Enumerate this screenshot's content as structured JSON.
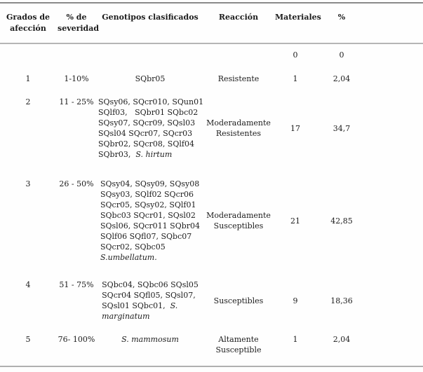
{
  "colors": {
    "background": "#fefefe",
    "text": "#1c1c1c",
    "rule_top": "#8a8a8a",
    "rule_header": "#b5b5b5",
    "rule_bottom": "#b0b0b0"
  },
  "table": {
    "headers": [
      "Grados de afección",
      "% de severidad",
      "Genotipos clasificados",
      "Reacción",
      "Materiales",
      "%"
    ],
    "rows": [
      {
        "grade": "",
        "severity": "",
        "genotypes": [],
        "reaction": "",
        "materials": "0",
        "percent": "0"
      },
      {
        "grade": "1",
        "severity": "1-10%",
        "genotypes": [
          [
            {
              "t": "SQbr05"
            }
          ]
        ],
        "reaction": "Resistente",
        "materials": "1",
        "percent": "2,04"
      },
      {
        "grade": "2",
        "severity": "11 - 25%",
        "genotypes": [
          [
            {
              "t": "SQsy06, SQcr010, SQun01"
            }
          ],
          [
            {
              "t": "SQlf03,   SQbr01 SQbc02"
            }
          ],
          [
            {
              "t": "SQsy07, SQcr09, SQsl03"
            }
          ],
          [
            {
              "t": "SQsl04 SQcr07, SQcr03"
            }
          ],
          [
            {
              "t": "SQbr02, SQcr08, SQlf04"
            }
          ],
          [
            {
              "t": "SQbr03,  "
            },
            {
              "t": "S. hirtum",
              "i": true
            }
          ]
        ],
        "reaction": "Moderadamente Resistentes",
        "materials": "17",
        "percent": "34,7"
      },
      {
        "grade": "3",
        "severity": "26 - 50%",
        "genotypes": [
          [
            {
              "t": "SQsy04, SQsy09, SQsy08"
            }
          ],
          [
            {
              "t": "SQsy03, SQlf02 SQcr06"
            }
          ],
          [
            {
              "t": "SQcr05, SQsy02, SQlf01"
            }
          ],
          [
            {
              "t": "SQbc03 SQcr01, SQsl02"
            }
          ],
          [
            {
              "t": "SQsl06, SQcr011 SQbr04"
            }
          ],
          [
            {
              "t": "SQlf06 SQfl07, SQbc07"
            }
          ],
          [
            {
              "t": "SQcr02, SQbc05"
            }
          ],
          [
            {
              "t": "S.umbellatum.",
              "i": true
            }
          ]
        ],
        "reaction": "Moderadamente Susceptibles",
        "materials": "21",
        "percent": "42,85"
      },
      {
        "grade": "4",
        "severity": "51 - 75%",
        "genotypes": [
          [
            {
              "t": "SQbc04, SQbc06 SQsl05"
            }
          ],
          [
            {
              "t": "SQcr04 SQfl05, SQsl07,"
            }
          ],
          [
            {
              "t": "SQsl01 SQbc01,  "
            },
            {
              "t": "S.",
              "i": true
            }
          ],
          [
            {
              "t": "marginatum",
              "i": true
            }
          ]
        ],
        "reaction": "Susceptibles",
        "materials": "9",
        "percent": "18,36"
      },
      {
        "grade": "5",
        "severity": "76- 100%",
        "genotypes": [
          [
            {
              "t": "S. mammosum",
              "i": true
            }
          ]
        ],
        "reaction": "Altamente Susceptible",
        "materials": "1",
        "percent": "2,04"
      }
    ]
  }
}
